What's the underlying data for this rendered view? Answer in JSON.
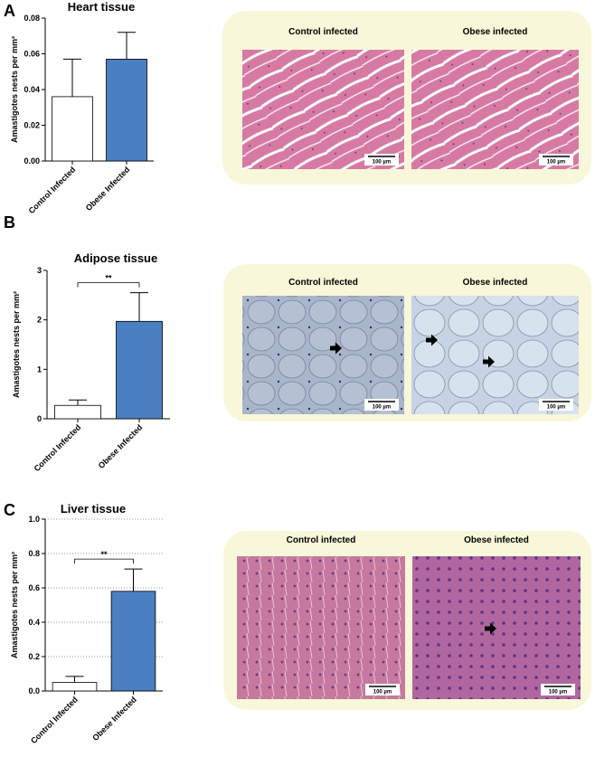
{
  "chart_data": [
    {
      "type": "bar",
      "panel": "A",
      "title": "Heart tissue",
      "y_label": "Amastigotes nests per mm²",
      "categories": [
        "Control Infected",
        "Obese Infected"
      ],
      "values": [
        0.036,
        0.057
      ],
      "errors": [
        0.021,
        0.015
      ],
      "colors": [
        "#ffffff",
        "#4a7fc1"
      ],
      "ylim": [
        0,
        0.08
      ],
      "yticks": [
        {
          "value": 0,
          "label": "0.00"
        },
        {
          "value": 0.02,
          "label": "0.02"
        },
        {
          "value": 0.04,
          "label": "0.04"
        },
        {
          "value": 0.06,
          "label": "0.06"
        },
        {
          "value": 0.08,
          "label": "0.08"
        }
      ],
      "grid": false,
      "images": {
        "labels": [
          "Control infected",
          "Obese infected"
        ],
        "scale_bar": "100 µm"
      }
    },
    {
      "type": "bar",
      "panel": "B",
      "title": "Adipose tissue",
      "y_label": "Amastigotes nests per mm²",
      "categories": [
        "Control Infected",
        "Obese Infected"
      ],
      "values": [
        0.27,
        1.97
      ],
      "errors": [
        0.11,
        0.58
      ],
      "colors": [
        "#ffffff",
        "#4a7fc1"
      ],
      "ylim": [
        0,
        3
      ],
      "yticks": [
        0,
        1,
        2,
        3
      ],
      "grid": false,
      "annotation": "**",
      "images": {
        "labels": [
          "Control infected",
          "Obese infected"
        ],
        "scale_bar": "100 µm"
      }
    },
    {
      "type": "bar",
      "panel": "C",
      "title": "Liver tissue",
      "y_label": "Amastigotes nests per mm²",
      "categories": [
        "Control Infected",
        "Obese Infected"
      ],
      "values": [
        0.05,
        0.58
      ],
      "errors": [
        0.035,
        0.13
      ],
      "colors": [
        "#ffffff",
        "#4a7fc1"
      ],
      "ylim": [
        0,
        1.0
      ],
      "yticks": [
        {
          "value": 0,
          "label": "0.0"
        },
        {
          "value": 0.2,
          "label": "0.2"
        },
        {
          "value": 0.4,
          "label": "0.4"
        },
        {
          "value": 0.6,
          "label": "0.6"
        },
        {
          "value": 0.8,
          "label": "0.8"
        },
        {
          "value": 1.0,
          "label": "1.0"
        }
      ],
      "grid": true,
      "annotation": "**",
      "images": {
        "labels": [
          "Control infected",
          "Obese infected"
        ],
        "scale_bar": "100 µm"
      }
    }
  ]
}
